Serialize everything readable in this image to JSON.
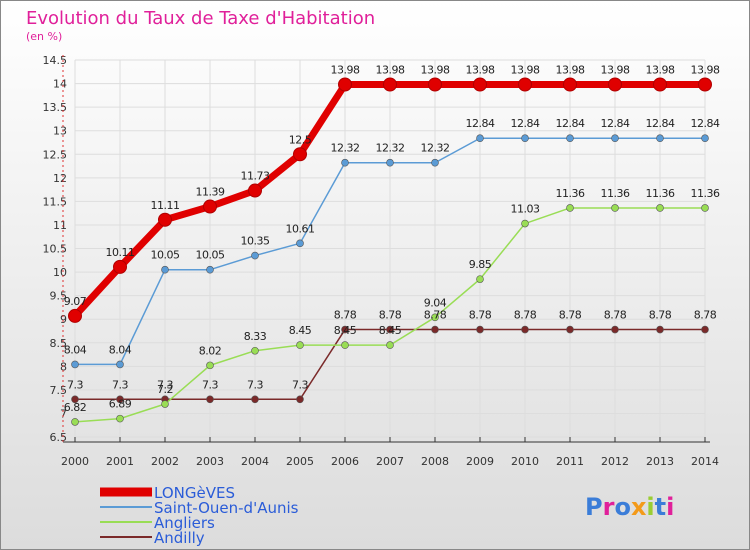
{
  "title": "Evolution du Taux de Taxe d'Habitation",
  "subtitle": "(en %)",
  "logo_text": "Proxiti",
  "colors": {
    "title": "#e0209a",
    "legend_text": "#2a5cd8",
    "grid": "#dddddd",
    "axis": "#333333",
    "axis_left": "#e03030",
    "background_top": "#ffffff",
    "background_bottom": "#dcdcdc"
  },
  "chart_data": {
    "type": "line",
    "x": [
      "2000",
      "2001",
      "2002",
      "2003",
      "2004",
      "2005",
      "2006",
      "2007",
      "2008",
      "2009",
      "2010",
      "2011",
      "2012",
      "2013",
      "2014"
    ],
    "ylim": [
      6.5,
      14.5
    ],
    "yticks": [
      "6.5",
      "7",
      "7.5",
      "8",
      "8.5",
      "9",
      "9.5",
      "10",
      "10.5",
      "11",
      "11.5",
      "12",
      "12.5",
      "13",
      "13.5",
      "14",
      "14.5"
    ],
    "grid": true,
    "legend_position": "bottom-left",
    "series": [
      {
        "name": "LONGèVES",
        "color": "#e00000",
        "values": [
          9.07,
          10.11,
          11.11,
          11.39,
          11.73,
          12.5,
          13.98,
          13.98,
          13.98,
          13.98,
          13.98,
          13.98,
          13.98,
          13.98,
          13.98
        ],
        "labels": [
          "9.07",
          "10.11",
          "11.11",
          "11.39",
          "11.73",
          "12.5",
          "13.98",
          "13.98",
          "13.98",
          "13.98",
          "13.98",
          "13.98",
          "13.98",
          "13.98",
          "13.98"
        ]
      },
      {
        "name": "Saint-Ouen-d'Aunis",
        "color": "#5b9bd5",
        "values": [
          8.04,
          8.04,
          10.05,
          10.05,
          10.35,
          10.61,
          12.32,
          12.32,
          12.32,
          12.84,
          12.84,
          12.84,
          12.84,
          12.84,
          12.84
        ],
        "labels": [
          "8.04",
          "8.04",
          "10.05",
          "10.05",
          "10.35",
          "10.61",
          "12.32",
          "12.32",
          "12.32",
          "12.84",
          "12.84",
          "12.84",
          "12.84",
          "12.84",
          "12.84"
        ]
      },
      {
        "name": "Angliers",
        "color": "#99dd55",
        "values": [
          6.82,
          6.89,
          7.2,
          8.02,
          8.33,
          8.45,
          8.45,
          8.45,
          9.04,
          9.85,
          11.03,
          11.36,
          11.36,
          11.36,
          11.36
        ],
        "labels": [
          "6.82",
          "6.89",
          "7.2",
          "8.02",
          "8.33",
          "8.45",
          "8.45",
          "8.45",
          "9.04",
          "9.85",
          "11.03",
          "11.36",
          "11.36",
          "11.36",
          "11.36"
        ]
      },
      {
        "name": "Andilly",
        "color": "#7b2a2a",
        "values": [
          7.3,
          7.3,
          7.3,
          7.3,
          7.3,
          7.3,
          8.78,
          8.78,
          8.78,
          8.78,
          8.78,
          8.78,
          8.78,
          8.78,
          8.78
        ],
        "labels": [
          "7.3",
          "7.3",
          "7.3",
          "7.3",
          "7.3",
          "7.3",
          "8.78",
          "8.78",
          "8.78",
          "8.78",
          "8.78",
          "8.78",
          "8.78",
          "8.78",
          "8.78"
        ]
      }
    ]
  }
}
